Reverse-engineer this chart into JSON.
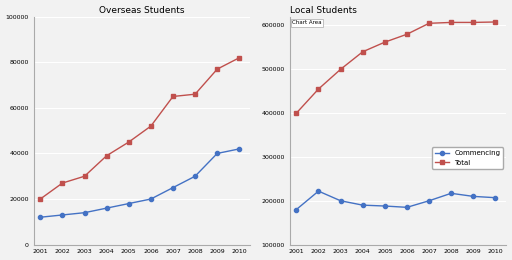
{
  "years": [
    2001,
    2002,
    2003,
    2004,
    2005,
    2006,
    2007,
    2008,
    2009,
    2010
  ],
  "overseas_commencing": [
    12000,
    13000,
    14000,
    16000,
    18000,
    20000,
    25000,
    30000,
    40000,
    42000
  ],
  "overseas_total": [
    20000,
    27000,
    30000,
    39000,
    45000,
    52000,
    65000,
    66000,
    77000,
    82000
  ],
  "local_commencing": [
    180000,
    222000,
    200000,
    190000,
    188000,
    185000,
    200000,
    217000,
    210000,
    207000
  ],
  "local_total": [
    400000,
    455000,
    500000,
    540000,
    562000,
    580000,
    605000,
    607000,
    607000,
    608000
  ],
  "overseas_title": "Overseas Students",
  "local_title": "Local Students",
  "overseas_ylim": [
    0,
    100000
  ],
  "local_ylim": [
    100000,
    620000
  ],
  "local_yticks": [
    100000,
    200000,
    300000,
    400000,
    500000,
    600000
  ],
  "overseas_yticks": [
    0,
    20000,
    40000,
    60000,
    80000,
    100000
  ],
  "color_commencing": "#4472C4",
  "color_total": "#C0504D",
  "legend_labels": [
    "Commencing",
    "Total"
  ],
  "chart_area_label": "Chart Area",
  "bg_color": "#F2F2F2"
}
